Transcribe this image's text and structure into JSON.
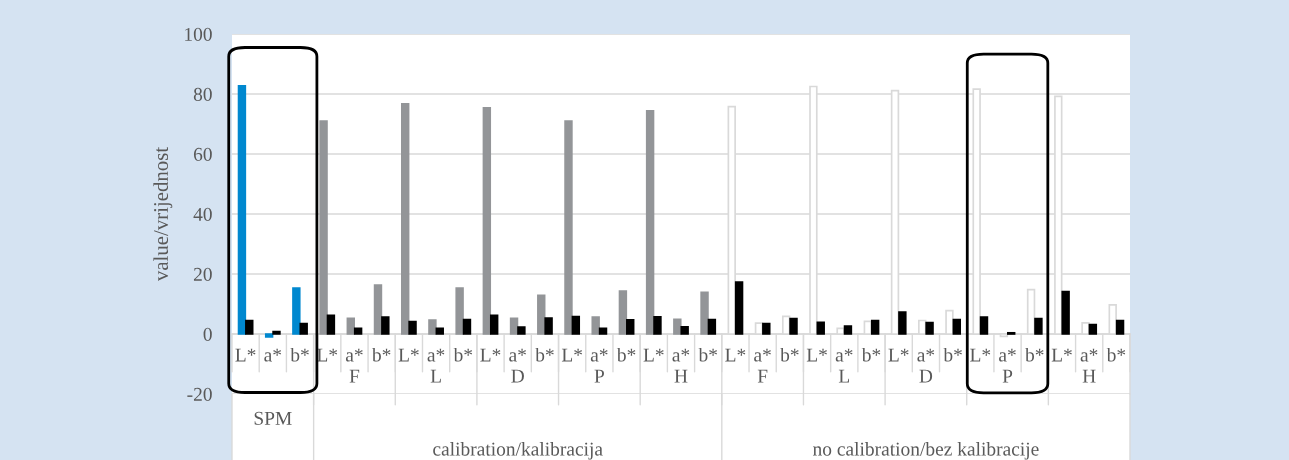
{
  "chart_data": {
    "type": "bar",
    "ylabel": "value/vrijednost",
    "categories": [
      "L*",
      "a*",
      "b*",
      "L*",
      "a*",
      "b*",
      "L*",
      "a*",
      "b*",
      "L*",
      "a*",
      "b*",
      "L*",
      "a*",
      "b*",
      "L*",
      "a*",
      "b*",
      "L*",
      "a*",
      "b*",
      "L*",
      "a*",
      "b*",
      "L*",
      "a*",
      "b*",
      "L*",
      "a*",
      "b*",
      "L*",
      "a*",
      "b*"
    ],
    "series": [
      {
        "values": [
          82.7,
          -1.0,
          15.3,
          71.0,
          5.2,
          16.3,
          76.7,
          4.6,
          15.3,
          75.4,
          5.2,
          12.9,
          71.0,
          5.6,
          14.3,
          74.4,
          4.9,
          13.9,
          75.8,
          3.6,
          5.9,
          82.5,
          1.9,
          4.2,
          81.1,
          4.5,
          7.8,
          81.6,
          -0.8,
          14.8,
          79.2,
          3.7,
          9.7
        ],
        "colors": [
          "#0088cf",
          "#0088cf",
          "#0088cf",
          "#939598",
          "#939598",
          "#939598",
          "#939598",
          "#939598",
          "#939598",
          "#939598",
          "#939598",
          "#939598",
          "#939598",
          "#939598",
          "#939598",
          "#939598",
          "#939598",
          "#939598",
          "#ffffff",
          "#ffffff",
          "#ffffff",
          "#ffffff",
          "#ffffff",
          "#ffffff",
          "#ffffff",
          "#ffffff",
          "#ffffff",
          "#ffffff",
          "#ffffff",
          "#ffffff",
          "#ffffff",
          "#ffffff",
          "#ffffff"
        ]
      },
      {
        "color": "#000000",
        "values": [
          4.5,
          0.8,
          3.5,
          6.2,
          1.9,
          5.6,
          4.1,
          1.9,
          4.8,
          6.2,
          2.3,
          5.3,
          5.8,
          1.9,
          4.7,
          5.7,
          2.4,
          4.8,
          17.3,
          3.5,
          5.1,
          3.9,
          2.6,
          4.5,
          7.3,
          3.8,
          4.8,
          5.6,
          0.4,
          5.1,
          14.1,
          3.1,
          4.5
        ]
      }
    ],
    "ylim": [
      -20,
      100
    ],
    "yticks": [
      -20,
      0,
      20,
      40,
      60,
      80,
      100
    ],
    "grid": "y",
    "legend": false,
    "annotations": [
      "F",
      "L",
      "D",
      "P",
      "H",
      "F",
      "L",
      "D",
      "P",
      "H",
      "SPM",
      "calibration/kalibracija",
      "no calibration/bez kalibracije"
    ]
  }
}
